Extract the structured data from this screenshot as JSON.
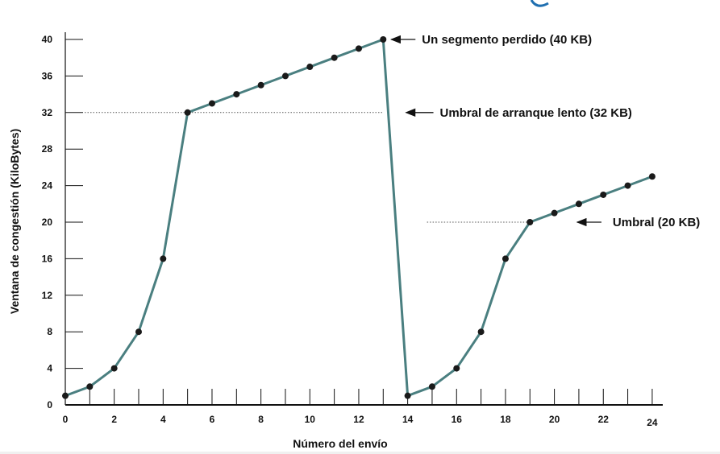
{
  "colors": {
    "line": "#4a7f80",
    "marker": "#1a1a1a",
    "axis": "#111111",
    "threshold": "#555555",
    "header_fragment": "#1f6fb0"
  },
  "chart_data": {
    "type": "line",
    "title": "",
    "xlabel": "Número del envío",
    "ylabel": "Ventana de congestión (KiloBytes)",
    "xlim": [
      0,
      24
    ],
    "ylim": [
      0,
      40
    ],
    "x_ticks": [
      0,
      2,
      4,
      6,
      8,
      10,
      12,
      14,
      16,
      18,
      20,
      22,
      24
    ],
    "y_ticks": [
      0,
      4,
      8,
      12,
      16,
      20,
      24,
      28,
      32,
      36,
      40
    ],
    "grid": false,
    "series": [
      {
        "x": [
          0,
          1,
          2,
          3,
          4,
          5,
          6,
          7,
          8,
          9,
          10,
          11,
          12,
          13,
          14,
          15,
          16,
          17,
          18,
          19,
          20,
          21,
          22,
          23,
          24
        ],
        "y": [
          1,
          2,
          4,
          8,
          16,
          32,
          33,
          34,
          35,
          36,
          37,
          38,
          39,
          40,
          1,
          2,
          4,
          8,
          16,
          20,
          21,
          22,
          23,
          24,
          25
        ]
      }
    ],
    "thresholds": [
      {
        "y": 32,
        "x_from": 0,
        "x_to": 13,
        "label": "Umbral de arranque lento (32 KB)"
      },
      {
        "y": 20,
        "x_from": 14,
        "x_to": 19,
        "label": "Umbral (20 KB)"
      }
    ],
    "annotations": [
      {
        "label": "Un segmento perdido (40 KB)",
        "x": 13,
        "y": 40
      },
      {
        "label": "Umbral de arranque lento (32 KB)",
        "x": 13.8,
        "y": 32
      },
      {
        "label": "Umbral (20 KB)",
        "x": 21,
        "y": 20
      }
    ]
  }
}
